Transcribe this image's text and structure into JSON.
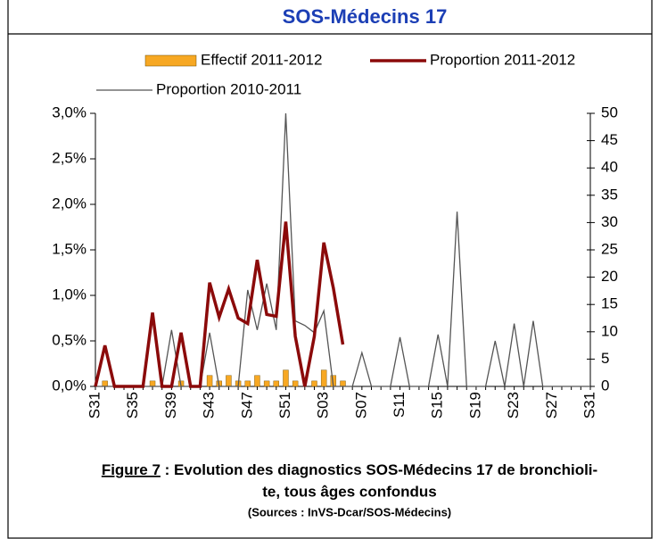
{
  "chart_data": {
    "type": "combo",
    "title": "SOS-Médecins 17",
    "categories": [
      "S31",
      null,
      null,
      null,
      "S35",
      null,
      null,
      null,
      "S39",
      null,
      null,
      null,
      "S43",
      null,
      null,
      null,
      "S47",
      null,
      null,
      null,
      "S51",
      null,
      null,
      null,
      "S03",
      null,
      null,
      null,
      "S07",
      null,
      null,
      null,
      "S11",
      null,
      null,
      null,
      "S15",
      null,
      null,
      null,
      "S19",
      null,
      null,
      null,
      "S23",
      null,
      null,
      null,
      "S27",
      null,
      null,
      null,
      "S31"
    ],
    "series": [
      {
        "name": "Effectif 2011-2012",
        "type": "bar",
        "axis": "y2",
        "color": "#f7a823",
        "values": [
          0,
          1,
          0,
          0,
          0,
          0,
          1,
          0,
          0,
          1,
          0,
          0,
          2,
          1,
          2,
          1,
          1,
          2,
          1,
          1,
          3,
          1,
          0,
          1,
          3,
          2,
          1,
          null,
          null,
          null,
          null,
          null,
          null,
          null,
          null,
          null,
          null,
          null,
          null,
          null,
          null,
          null,
          null,
          null,
          null,
          null,
          null,
          null,
          null,
          null,
          null,
          null,
          null
        ]
      },
      {
        "name": "Proportion 2011-2012",
        "type": "line",
        "color": "#8b0a0a",
        "values": [
          0,
          0.45,
          0,
          0,
          0,
          0,
          0.81,
          0,
          0,
          0.59,
          0,
          0,
          1.14,
          0.76,
          1.07,
          0.75,
          0.69,
          1.39,
          0.79,
          0.77,
          1.81,
          0.55,
          0,
          0.55,
          1.58,
          1.08,
          0.46,
          null,
          null,
          null,
          null,
          null,
          null,
          null,
          null,
          null,
          null,
          null,
          null,
          null,
          null,
          null,
          null,
          null,
          null,
          null,
          null,
          null,
          null,
          null,
          null,
          null,
          null
        ]
      },
      {
        "name": "Proportion 2010-2011",
        "type": "line",
        "color": "#555555",
        "values": [
          0,
          0,
          0,
          0,
          0,
          0,
          0,
          0,
          0.62,
          0,
          0,
          0,
          0.59,
          0,
          0,
          0,
          1.06,
          0.62,
          1.13,
          0.62,
          3.0,
          0.72,
          0.67,
          0.59,
          0.83,
          0,
          0,
          0,
          0.37,
          0,
          0,
          0,
          0.54,
          0,
          0,
          0,
          0.57,
          0,
          1.92,
          0,
          0,
          0,
          0.5,
          0,
          0.69,
          0,
          0.72,
          0,
          0,
          0,
          0,
          0,
          0
        ]
      }
    ],
    "ylim": [
      0,
      3
    ],
    "yticks": [
      {
        "value": 0,
        "label": "0,0%"
      },
      {
        "value": 0.5,
        "label": "0,5%"
      },
      {
        "value": 1,
        "label": "1,0%"
      },
      {
        "value": 1.5,
        "label": "1,5%"
      },
      {
        "value": 2,
        "label": "2,0%"
      },
      {
        "value": 2.5,
        "label": "2,5%"
      },
      {
        "value": 3,
        "label": "3,0%"
      }
    ],
    "y2lim": [
      0,
      50
    ],
    "y2ticks": [
      0,
      5,
      10,
      15,
      20,
      25,
      30,
      35,
      40,
      45,
      50
    ],
    "legend": "top"
  },
  "caption": {
    "figure": "Figure 7",
    "line1": " : Evolution des diagnostics SOS-Médecins 17 de bronchioli-",
    "line2": "te, tous âges confondus",
    "sources": "(Sources : InVS-Dcar/SOS-Médecins)"
  }
}
